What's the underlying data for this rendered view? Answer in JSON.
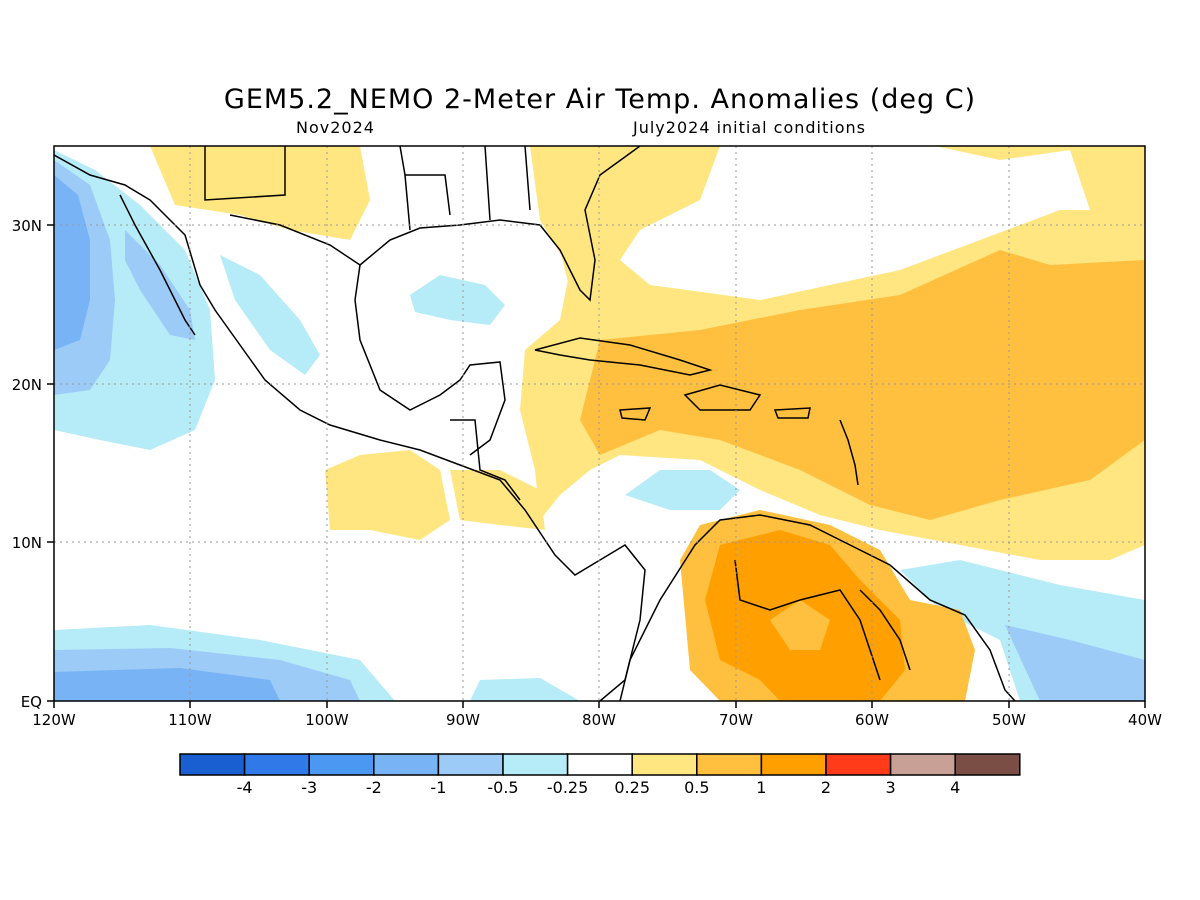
{
  "title": "GEM5.2_NEMO 2-Meter Air Temp. Anomalies (deg C)",
  "subtitle_left": "Nov2024",
  "subtitle_right": "July2024 initial conditions",
  "map": {
    "lon_range": [
      -120,
      -40
    ],
    "lat_range": [
      0,
      35
    ],
    "x_ticks": [
      "120W",
      "110W",
      "100W",
      "90W",
      "80W",
      "70W",
      "60W",
      "50W",
      "40W"
    ],
    "y_ticks": [
      "EQ",
      "10N",
      "20N",
      "30N"
    ],
    "grid": true
  },
  "colorbar": {
    "labels": [
      "-4",
      "-3",
      "-2",
      "-1",
      "-0.5",
      "-0.25",
      "0.25",
      "0.5",
      "1",
      "2",
      "3",
      "4"
    ],
    "colors": [
      "#1a5fd1",
      "#2f7ae8",
      "#4a98f2",
      "#78b4f5",
      "#9ccbf7",
      "#b6ecf8",
      "#ffffff",
      "#ffe680",
      "#ffc040",
      "#ffa000",
      "#ff3b1a",
      "#c8a096",
      "#7a4e44"
    ]
  }
}
